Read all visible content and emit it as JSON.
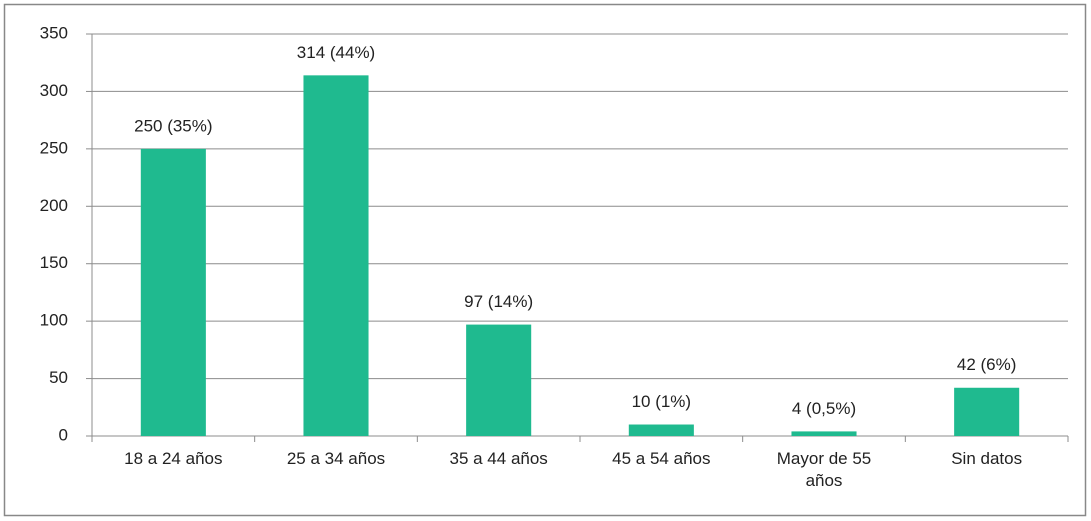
{
  "chart_data": {
    "type": "bar",
    "categories": [
      "18 a 24 años",
      "25 a 34 años",
      "35 a 44 años",
      "45 a 54 años",
      "Mayor de 55 años",
      "Sin datos"
    ],
    "values": [
      250,
      314,
      97,
      10,
      4,
      42
    ],
    "value_labels": [
      "250 (35%)",
      "314 (44%)",
      "97 (14%)",
      "10 (1%)",
      "4 (0,5%)",
      "42 (6%)"
    ],
    "color": "#1fba8f",
    "ylim": [
      0,
      350
    ],
    "yticks": [
      0,
      50,
      100,
      150,
      200,
      250,
      300,
      350
    ],
    "grid": true
  }
}
